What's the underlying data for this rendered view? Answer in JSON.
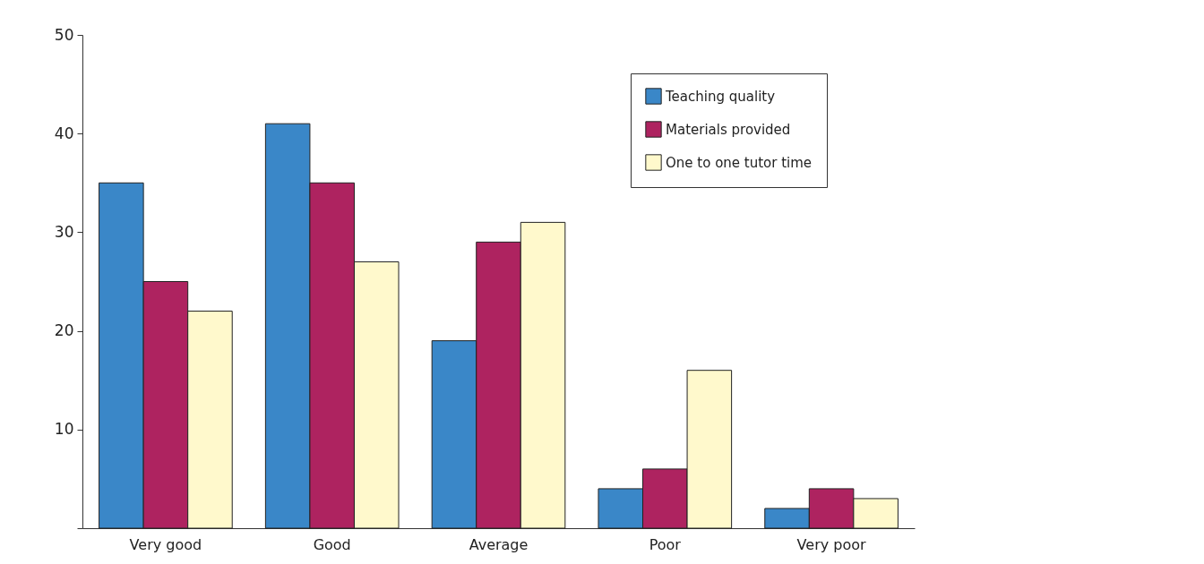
{
  "chart_data": {
    "type": "bar",
    "categories": [
      "Very good",
      "Good",
      "Average",
      "Poor",
      "Very poor"
    ],
    "series": [
      {
        "name": "Teaching quality",
        "color": "#3a87c8",
        "values": [
          35,
          41,
          19,
          4,
          2
        ]
      },
      {
        "name": "Materials provided",
        "color": "#ae2360",
        "values": [
          25,
          35,
          29,
          6,
          4
        ]
      },
      {
        "name": "One to one tutor time",
        "color": "#fff9cc",
        "values": [
          22,
          27,
          31,
          16,
          3
        ]
      }
    ],
    "ylim": [
      0,
      50
    ],
    "yticks": [
      {
        "value": 0,
        "label": null
      },
      10,
      20,
      30,
      40,
      50
    ],
    "grid": false,
    "legend": "top right"
  }
}
